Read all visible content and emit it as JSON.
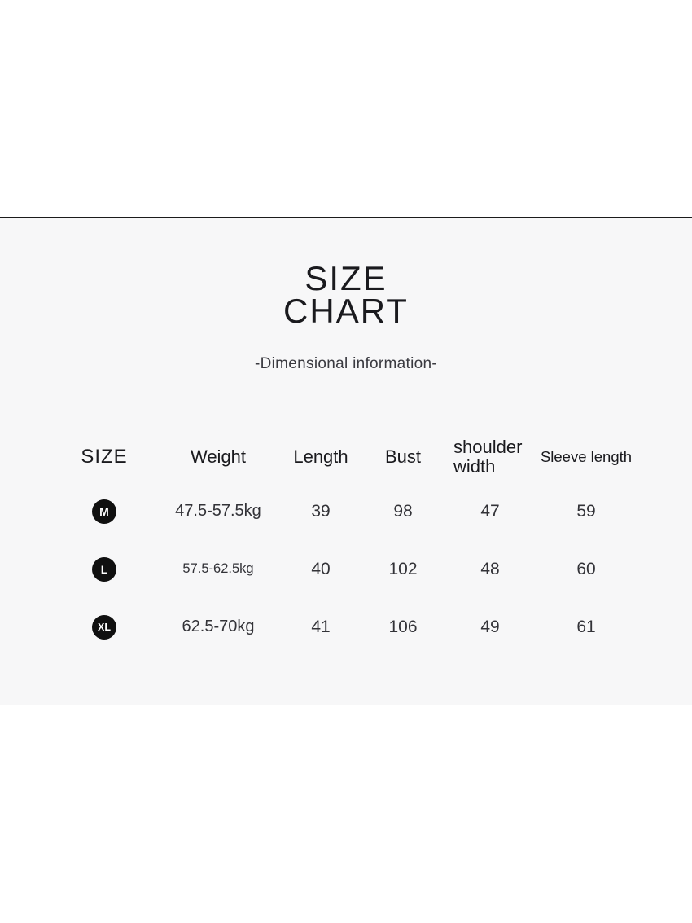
{
  "colors": {
    "divider": "#1b1b1b",
    "panel_bg": "#f7f7f8",
    "badge_bg": "#101010",
    "badge_text": "#ffffff",
    "heading_text": "#1a1a1e",
    "value_text": "#333338"
  },
  "title": {
    "line1": "SIZE",
    "line2": "CHART"
  },
  "subtitle": "-Dimensional information-",
  "chart_data": {
    "type": "table",
    "title": "SIZE CHART",
    "subtitle": "-Dimensional information-",
    "columns": [
      "SIZE",
      "Weight",
      "Length",
      "Bust",
      "shoulder width",
      "Sleeve length"
    ],
    "rows": [
      {
        "size": "M",
        "weight": "47.5-57.5kg",
        "length": "39",
        "bust": "98",
        "shoulder_width": "47",
        "sleeve_length": "59"
      },
      {
        "size": "L",
        "weight": "57.5-62.5kg",
        "length": "40",
        "bust": "102",
        "shoulder_width": "48",
        "sleeve_length": "60"
      },
      {
        "size": "XL",
        "weight": "62.5-70kg",
        "length": "41",
        "bust": "106",
        "shoulder_width": "49",
        "sleeve_length": "61"
      }
    ]
  }
}
